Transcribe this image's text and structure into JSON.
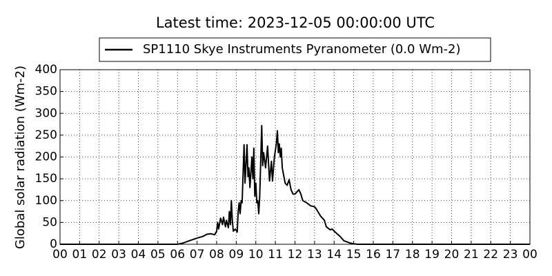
{
  "chart_data": {
    "type": "line",
    "title": "Latest time: 2023-12-05 00:00:00 UTC",
    "y_label": "Global solar radiation (Wm-2)",
    "x": [
      0,
      6.0,
      6.3,
      6.6,
      7.0,
      7.3,
      7.5,
      7.7,
      7.9,
      8.0,
      8.05,
      8.1,
      8.2,
      8.3,
      8.35,
      8.45,
      8.5,
      8.6,
      8.65,
      8.7,
      8.75,
      8.8,
      8.85,
      8.95,
      9.05,
      9.1,
      9.15,
      9.2,
      9.25,
      9.3,
      9.4,
      9.45,
      9.55,
      9.6,
      9.65,
      9.7,
      9.8,
      9.85,
      9.9,
      9.95,
      10.0,
      10.05,
      10.1,
      10.15,
      10.2,
      10.3,
      10.35,
      10.4,
      10.5,
      10.6,
      10.7,
      10.8,
      10.85,
      10.95,
      11.05,
      11.1,
      11.15,
      11.2,
      11.25,
      11.3,
      11.35,
      11.5,
      11.6,
      11.7,
      11.8,
      11.9,
      12.0,
      12.2,
      12.3,
      12.4,
      12.6,
      12.8,
      13.0,
      13.1,
      13.3,
      13.5,
      13.6,
      13.8,
      13.9,
      14.0,
      14.3,
      14.5,
      14.8,
      15.0,
      15.2,
      24
    ],
    "series": [
      {
        "name": "SP1110 Skye Instruments Pyranometer (0.0 Wm-2)",
        "color": "#000000",
        "values": [
          0,
          0,
          3,
          8,
          14,
          18,
          23,
          24,
          22,
          30,
          50,
          35,
          60,
          45,
          62,
          40,
          55,
          38,
          75,
          45,
          100,
          55,
          30,
          35,
          28,
          75,
          95,
          70,
          100,
          95,
          228,
          140,
          228,
          155,
          175,
          130,
          200,
          150,
          220,
          110,
          140,
          95,
          100,
          70,
          110,
          272,
          180,
          210,
          175,
          225,
          145,
          190,
          145,
          200,
          230,
          260,
          210,
          230,
          200,
          220,
          175,
          140,
          135,
          148,
          125,
          115,
          115,
          125,
          115,
          100,
          95,
          88,
          86,
          80,
          65,
          55,
          40,
          33,
          35,
          30,
          18,
          8,
          3,
          1,
          0,
          0
        ]
      }
    ],
    "xlim": [
      0,
      24
    ],
    "xticks": [
      {
        "value": 0,
        "label": "00"
      },
      {
        "value": 1,
        "label": "01"
      },
      {
        "value": 2,
        "label": "02"
      },
      {
        "value": 3,
        "label": "03"
      },
      {
        "value": 4,
        "label": "04"
      },
      {
        "value": 5,
        "label": "05"
      },
      {
        "value": 6,
        "label": "06"
      },
      {
        "value": 7,
        "label": "07"
      },
      {
        "value": 8,
        "label": "08"
      },
      {
        "value": 9,
        "label": "09"
      },
      10,
      11,
      12,
      13,
      14,
      15,
      16,
      17,
      18,
      19,
      20,
      21,
      22,
      23,
      {
        "value": 24,
        "label": "00"
      }
    ],
    "ylim": [
      0,
      400
    ],
    "yticks": [
      0,
      50,
      100,
      150,
      200,
      250,
      300,
      350,
      400
    ],
    "grid": true
  }
}
